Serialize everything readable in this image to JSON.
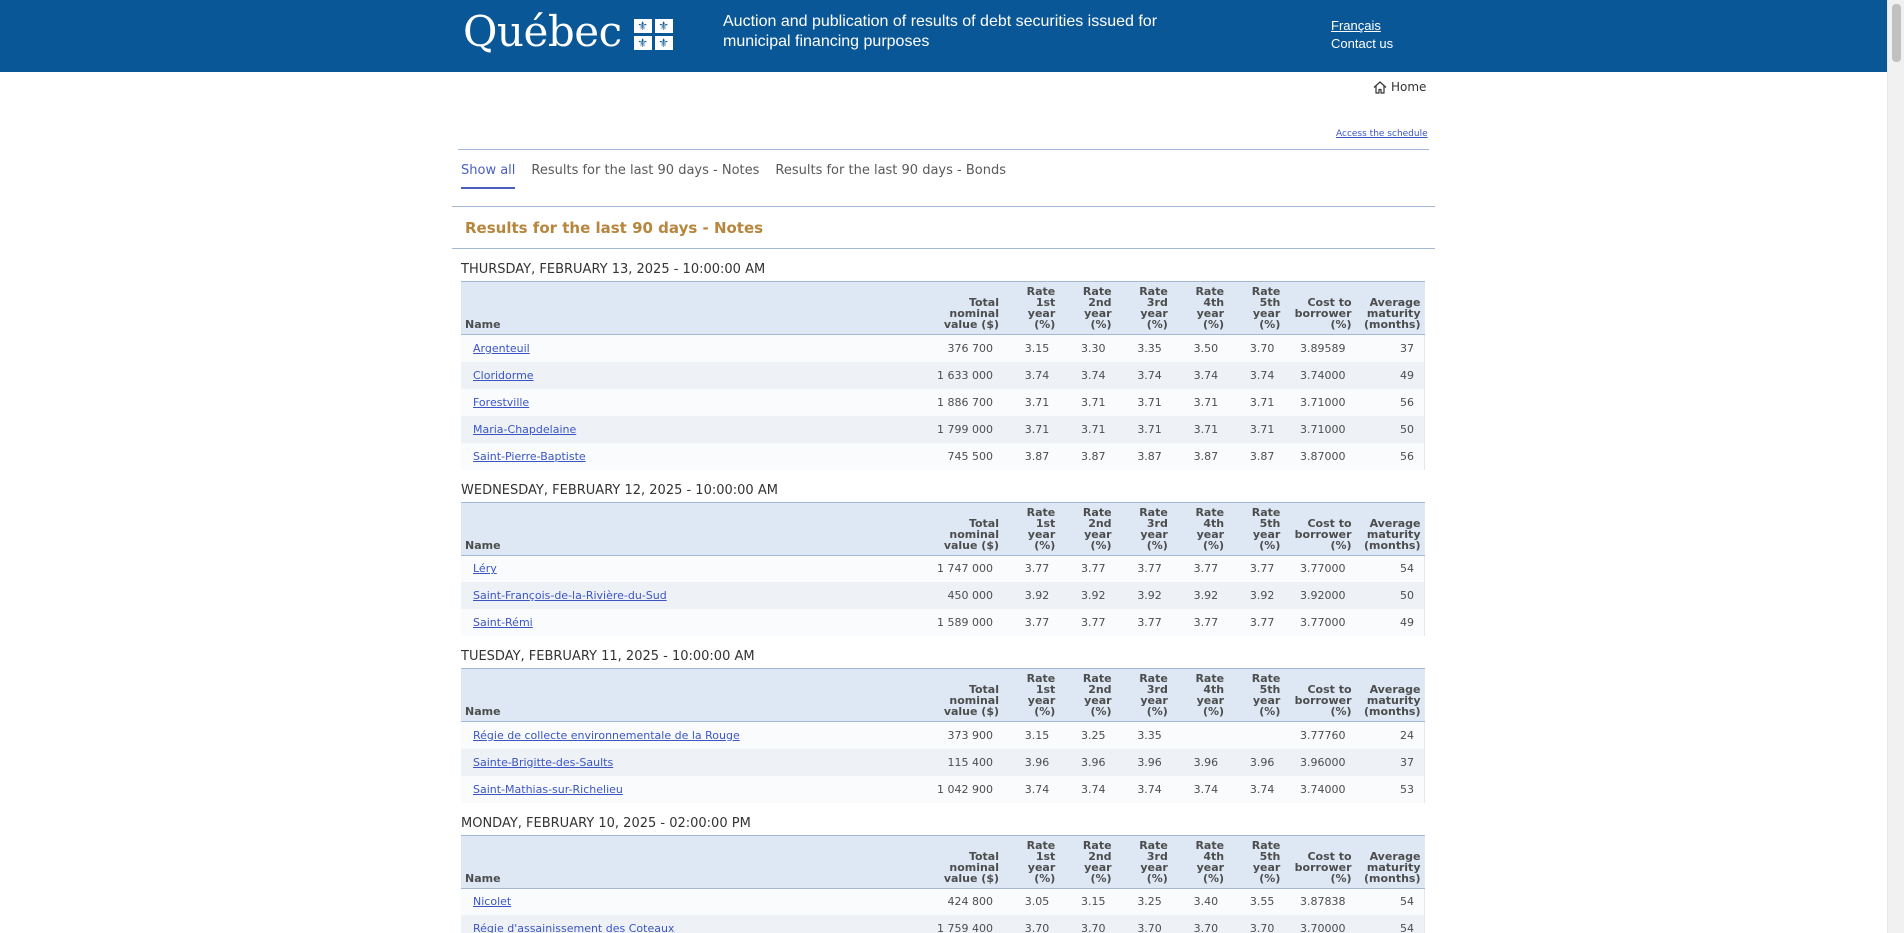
{
  "header": {
    "logo_word": "Québec",
    "logo_flag_glyph": "⚜",
    "title": "Auction and publication of results of debt securities issued for municipal financing purposes",
    "lang_link": "Français",
    "contact_link": "Contact us"
  },
  "nav": {
    "home_label": "Home",
    "schedule_link": "Access the schedule"
  },
  "tabs": [
    {
      "label": "Show all",
      "active": true
    },
    {
      "label": "Results for the last 90 days - Notes",
      "active": false
    },
    {
      "label": "Results for the last 90 days - Bonds",
      "active": false
    }
  ],
  "section_title": "Results for the last 90 days - Notes",
  "columns": {
    "name": "Name",
    "total_nominal": "Total nominal value ($)",
    "rate1": "Rate 1st year (%)",
    "rate2": "Rate 2nd year (%)",
    "rate3": "Rate 3rd year (%)",
    "rate4": "Rate 4th year (%)",
    "rate5": "Rate 5th year (%)",
    "cost": "Cost to borrower (%)",
    "maturity": "Average maturity (months)"
  },
  "auctions": [
    {
      "date": "THURSDAY, FEBRUARY 13, 2025 - 10:00:00 AM",
      "rows": [
        {
          "name": "Argenteuil",
          "total": "376 700",
          "r1": "3.15",
          "r2": "3.30",
          "r3": "3.35",
          "r4": "3.50",
          "r5": "3.70",
          "cost": "3.89589",
          "maturity": "37"
        },
        {
          "name": "Cloridorme",
          "total": "1 633 000",
          "r1": "3.74",
          "r2": "3.74",
          "r3": "3.74",
          "r4": "3.74",
          "r5": "3.74",
          "cost": "3.74000",
          "maturity": "49"
        },
        {
          "name": "Forestville",
          "total": "1 886 700",
          "r1": "3.71",
          "r2": "3.71",
          "r3": "3.71",
          "r4": "3.71",
          "r5": "3.71",
          "cost": "3.71000",
          "maturity": "56"
        },
        {
          "name": "Maria-Chapdelaine",
          "total": "1 799 000",
          "r1": "3.71",
          "r2": "3.71",
          "r3": "3.71",
          "r4": "3.71",
          "r5": "3.71",
          "cost": "3.71000",
          "maturity": "50"
        },
        {
          "name": "Saint-Pierre-Baptiste",
          "total": "745 500",
          "r1": "3.87",
          "r2": "3.87",
          "r3": "3.87",
          "r4": "3.87",
          "r5": "3.87",
          "cost": "3.87000",
          "maturity": "56"
        }
      ]
    },
    {
      "date": "WEDNESDAY, FEBRUARY 12, 2025 - 10:00:00 AM",
      "rows": [
        {
          "name": "Léry",
          "total": "1 747 000",
          "r1": "3.77",
          "r2": "3.77",
          "r3": "3.77",
          "r4": "3.77",
          "r5": "3.77",
          "cost": "3.77000",
          "maturity": "54"
        },
        {
          "name": "Saint-François-de-la-Rivière-du-Sud",
          "total": "450 000",
          "r1": "3.92",
          "r2": "3.92",
          "r3": "3.92",
          "r4": "3.92",
          "r5": "3.92",
          "cost": "3.92000",
          "maturity": "50"
        },
        {
          "name": "Saint-Rémi",
          "total": "1 589 000",
          "r1": "3.77",
          "r2": "3.77",
          "r3": "3.77",
          "r4": "3.77",
          "r5": "3.77",
          "cost": "3.77000",
          "maturity": "49"
        }
      ]
    },
    {
      "date": "TUESDAY, FEBRUARY 11, 2025 - 10:00:00 AM",
      "rows": [
        {
          "name": "Régie de collecte environnementale de la Rouge",
          "total": "373 900",
          "r1": "3.15",
          "r2": "3.25",
          "r3": "3.35",
          "r4": "",
          "r5": "",
          "cost": "3.77760",
          "maturity": "24"
        },
        {
          "name": "Sainte-Brigitte-des-Saults",
          "total": "115 400",
          "r1": "3.96",
          "r2": "3.96",
          "r3": "3.96",
          "r4": "3.96",
          "r5": "3.96",
          "cost": "3.96000",
          "maturity": "37"
        },
        {
          "name": "Saint-Mathias-sur-Richelieu",
          "total": "1 042 900",
          "r1": "3.74",
          "r2": "3.74",
          "r3": "3.74",
          "r4": "3.74",
          "r5": "3.74",
          "cost": "3.74000",
          "maturity": "53"
        }
      ]
    },
    {
      "date": "MONDAY, FEBRUARY 10, 2025 - 02:00:00 PM",
      "rows": [
        {
          "name": "Nicolet",
          "total": "424 800",
          "r1": "3.05",
          "r2": "3.15",
          "r3": "3.25",
          "r4": "3.40",
          "r5": "3.55",
          "cost": "3.87838",
          "maturity": "54"
        },
        {
          "name": "Régie d'assainissement des Coteaux",
          "total": "1 759 400",
          "r1": "3.70",
          "r2": "3.70",
          "r3": "3.70",
          "r4": "3.70",
          "r5": "3.70",
          "cost": "3.70000",
          "maturity": "54"
        }
      ]
    }
  ]
}
